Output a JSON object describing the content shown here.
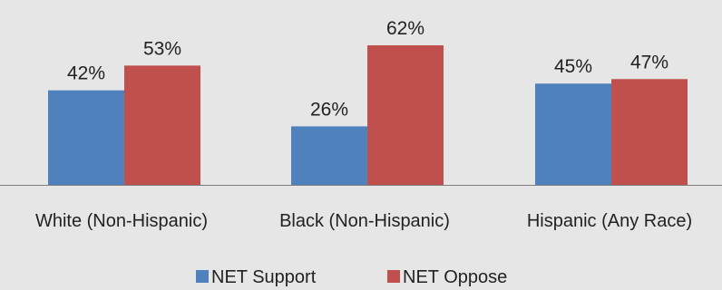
{
  "chart_data": {
    "type": "bar",
    "title": "",
    "xlabel": "",
    "ylabel": "",
    "ylim": [
      0,
      70
    ],
    "grid": false,
    "legend_position": "bottom",
    "categories": [
      "White (Non-Hispanic)",
      "Black (Non-Hispanic)",
      "Hispanic (Any Race)"
    ],
    "series": [
      {
        "name": "NET Support",
        "values": [
          42,
          26,
          45
        ],
        "labels": [
          "42%",
          "26%",
          "45%"
        ],
        "color": "#4f81bd"
      },
      {
        "name": "NET Oppose",
        "values": [
          53,
          62,
          47
        ],
        "labels": [
          "53%",
          "62%",
          "47%"
        ],
        "color": "#c0504d"
      }
    ]
  },
  "colors": {
    "background": "#e6e6e6",
    "axis": "#808080",
    "text": "#222222"
  }
}
